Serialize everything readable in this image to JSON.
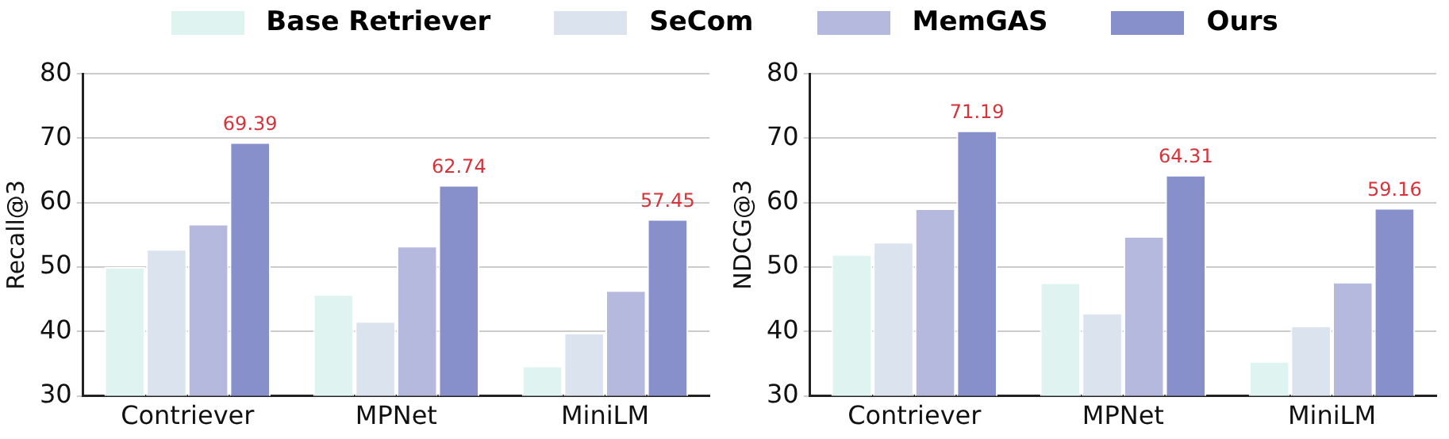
{
  "chart_data": [
    {
      "type": "bar",
      "ylabel": "Recall@3",
      "categories": [
        "Contriever",
        "MPNet",
        "MiniLM"
      ],
      "ylim": [
        30,
        80
      ],
      "yticks": [
        30,
        40,
        50,
        60,
        70,
        80
      ],
      "grid": "y",
      "legend": "top",
      "series": [
        {
          "name": "Base Retriever",
          "color": "#dff3f1",
          "values": [
            50.0,
            45.8,
            34.7
          ]
        },
        {
          "name": "SeCom",
          "color": "#dbe4ee",
          "values": [
            52.8,
            41.6,
            39.8
          ]
        },
        {
          "name": "MemGAS",
          "color": "#b6b9de",
          "values": [
            56.7,
            53.3,
            46.4
          ]
        },
        {
          "name": "Ours",
          "color": "#8890cc",
          "values": [
            69.39,
            62.74,
            57.45
          ],
          "value_labels": [
            "69.39",
            "62.74",
            "57.45"
          ]
        }
      ]
    },
    {
      "type": "bar",
      "ylabel": "NDCG@3",
      "categories": [
        "Contriever",
        "MPNet",
        "MiniLM"
      ],
      "ylim": [
        30,
        80
      ],
      "yticks": [
        30,
        40,
        50,
        60,
        70,
        80
      ],
      "grid": "y",
      "legend": false,
      "series": [
        {
          "color": "#dff3f1",
          "values": [
            52.0,
            47.6,
            35.4
          ]
        },
        {
          "color": "#dbe4ee",
          "values": [
            53.9,
            42.9,
            40.9
          ]
        },
        {
          "color": "#b6b9de",
          "values": [
            59.1,
            54.8,
            47.7
          ]
        },
        {
          "color": "#8890cc",
          "values": [
            71.19,
            64.31,
            59.16
          ],
          "value_labels": [
            "71.19",
            "64.31",
            "59.16"
          ]
        }
      ]
    }
  ]
}
